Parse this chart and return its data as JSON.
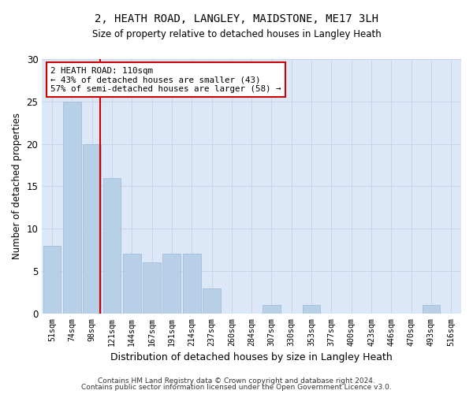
{
  "title": "2, HEATH ROAD, LANGLEY, MAIDSTONE, ME17 3LH",
  "subtitle": "Size of property relative to detached houses in Langley Heath",
  "xlabel": "Distribution of detached houses by size in Langley Heath",
  "ylabel": "Number of detached properties",
  "categories": [
    "51sqm",
    "74sqm",
    "98sqm",
    "121sqm",
    "144sqm",
    "167sqm",
    "191sqm",
    "214sqm",
    "237sqm",
    "260sqm",
    "284sqm",
    "307sqm",
    "330sqm",
    "353sqm",
    "377sqm",
    "400sqm",
    "423sqm",
    "446sqm",
    "470sqm",
    "493sqm",
    "516sqm"
  ],
  "values": [
    8,
    25,
    20,
    16,
    7,
    6,
    7,
    7,
    3,
    0,
    0,
    1,
    0,
    1,
    0,
    0,
    0,
    0,
    0,
    1,
    0
  ],
  "bar_color": "#b8cfe8",
  "bar_edgecolor": "#9ab8d8",
  "bar_linewidth": 0.5,
  "grid_color": "#c8d4e8",
  "bg_color": "#dce8f8",
  "red_line_x": 2.42,
  "red_line_color": "#cc0000",
  "annotation_text": "2 HEATH ROAD: 110sqm\n← 43% of detached houses are smaller (43)\n57% of semi-detached houses are larger (58) →",
  "annotation_box_edgecolor": "#cc0000",
  "ylim": [
    0,
    30
  ],
  "yticks": [
    0,
    5,
    10,
    15,
    20,
    25,
    30
  ],
  "footer1": "Contains HM Land Registry data © Crown copyright and database right 2024.",
  "footer2": "Contains public sector information licensed under the Open Government Licence v3.0."
}
